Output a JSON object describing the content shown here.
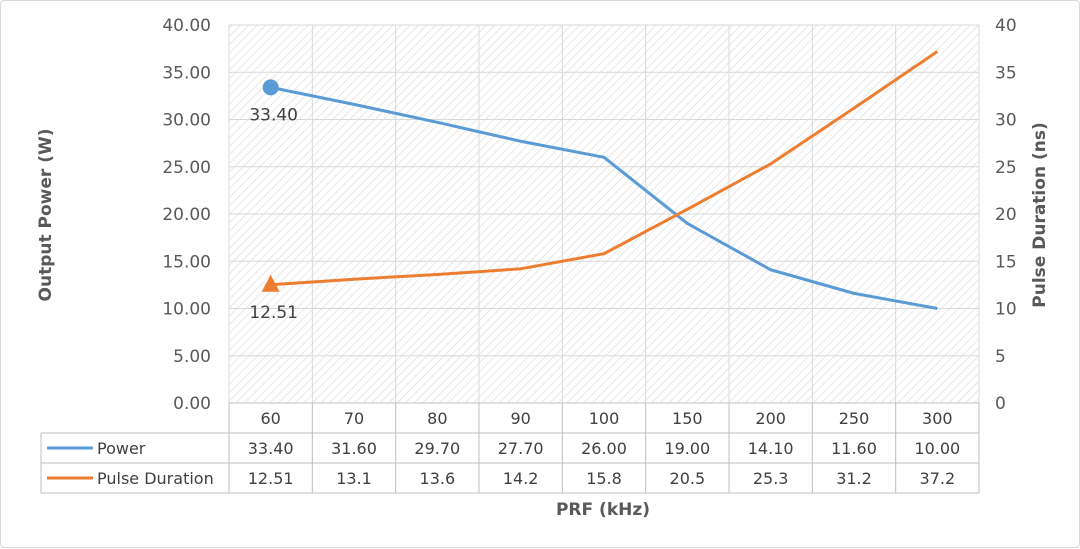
{
  "chart_data": {
    "type": "line",
    "categories": [
      "60",
      "70",
      "80",
      "90",
      "100",
      "150",
      "200",
      "250",
      "300"
    ],
    "series": [
      {
        "name": "Power",
        "axis": "left",
        "color": "#5b9bd5",
        "marker": "circle",
        "values": [
          33.4,
          31.6,
          29.7,
          27.7,
          26.0,
          19.0,
          14.1,
          11.6,
          10.0
        ],
        "table_values": [
          "33.40",
          "31.60",
          "29.70",
          "27.70",
          "26.00",
          "19.00",
          "14.10",
          "11.60",
          "10.00"
        ],
        "data_label": "33.40"
      },
      {
        "name": "Pulse Duration",
        "axis": "right",
        "color": "#ed7d31",
        "marker": "triangle",
        "values": [
          12.51,
          13.1,
          13.6,
          14.2,
          15.8,
          20.5,
          25.3,
          31.2,
          37.2
        ],
        "table_values": [
          "12.51",
          "13.1",
          "13.6",
          "14.2",
          "15.8",
          "20.5",
          "25.3",
          "31.2",
          "37.2"
        ],
        "data_label": "12.51"
      }
    ],
    "xlabel": "PRF (kHz)",
    "ylabel": "Output Power (W)",
    "y2label": "Pulse Duration (ns)",
    "ylim": [
      0,
      40
    ],
    "y2lim": [
      0,
      40
    ],
    "y_ticks": [
      "0.00",
      "5.00",
      "10.00",
      "15.00",
      "20.00",
      "25.00",
      "30.00",
      "35.00",
      "40.00"
    ],
    "y2_ticks": [
      "0",
      "5",
      "10",
      "15",
      "20",
      "25",
      "30",
      "35",
      "40"
    ],
    "legend": "data-table",
    "grid": true
  }
}
